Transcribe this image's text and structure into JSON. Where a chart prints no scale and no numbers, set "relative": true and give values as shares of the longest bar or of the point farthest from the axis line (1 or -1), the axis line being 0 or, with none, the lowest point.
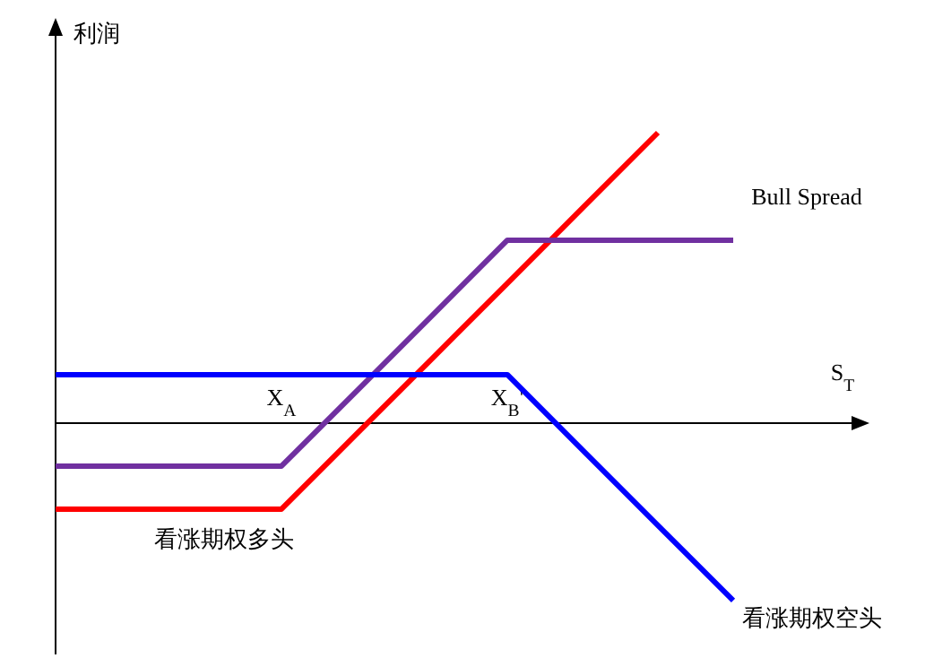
{
  "chart_data": {
    "type": "line",
    "relative": true,
    "xlabel": "S$_{T}$",
    "ylabel": "利润",
    "legend": false,
    "marker": "none",
    "line_style": "solid",
    "grid": false,
    "categories": [
      null,
      null,
      null,
      "X$_{A}$",
      null,
      null,
      "X$_{B}$'",
      null,
      null,
      null,
      null
    ],
    "series": [
      {
        "name": "看涨期权多头",
        "color": "#ff0000",
        "values": [
          -0.296,
          -0.296,
          -0.296,
          -0.296,
          -0.037,
          0.222,
          0.481,
          0.741,
          1,
          null,
          null
        ]
      },
      {
        "name": "Bull Spread",
        "color": "#7030a0",
        "values": [
          -0.148,
          -0.148,
          -0.148,
          -0.148,
          0.111,
          0.37,
          0.63,
          0.63,
          0.63,
          0.63,
          null
        ]
      },
      {
        "name": "看涨期权空头",
        "color": "#0000ff",
        "values": [
          0.167,
          0.167,
          0.167,
          0.167,
          0.167,
          0.167,
          0.167,
          -0.093,
          -0.352,
          -0.611,
          null
        ]
      }
    ]
  }
}
